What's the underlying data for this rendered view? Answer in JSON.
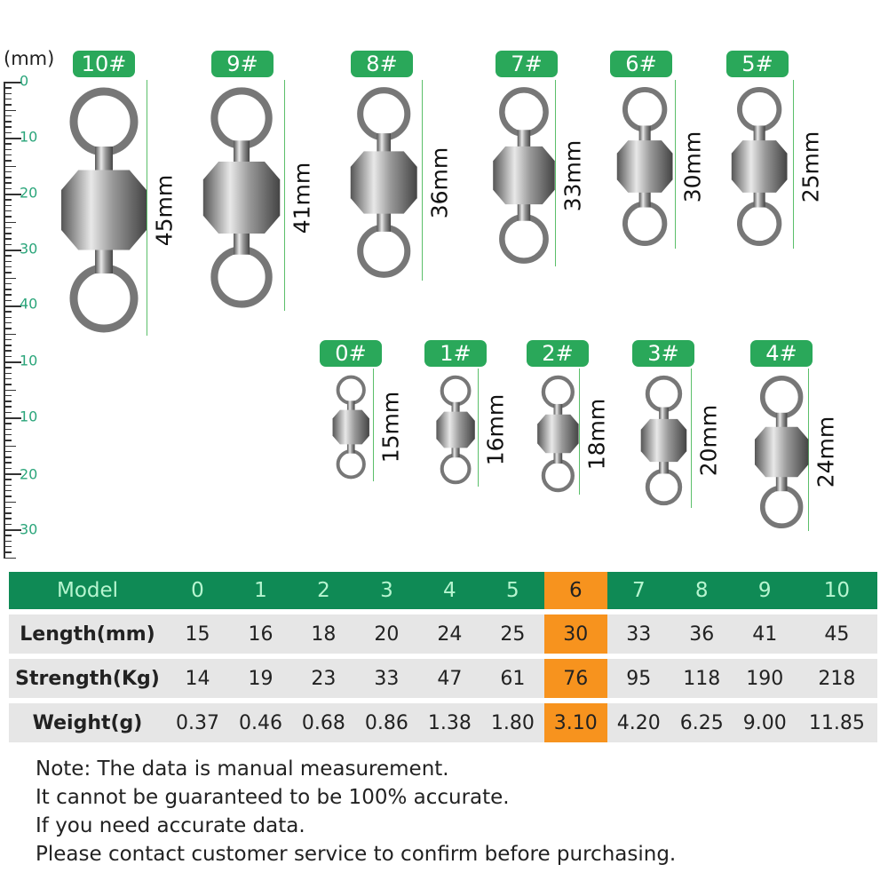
{
  "unit_label": "(mm)",
  "ruler_labels": [
    "0",
    "10",
    "20",
    "30",
    "40",
    "10",
    "10",
    "20",
    "30"
  ],
  "swivels": [
    {
      "badge": "10#",
      "length": "45mm"
    },
    {
      "badge": "9#",
      "length": "41mm"
    },
    {
      "badge": "8#",
      "length": "36mm"
    },
    {
      "badge": "7#",
      "length": "33mm"
    },
    {
      "badge": "6#",
      "length": "30mm"
    },
    {
      "badge": "5#",
      "length": "25mm"
    },
    {
      "badge": "0#",
      "length": "15mm"
    },
    {
      "badge": "1#",
      "length": "16mm"
    },
    {
      "badge": "2#",
      "length": "18mm"
    },
    {
      "badge": "3#",
      "length": "20mm"
    },
    {
      "badge": "4#",
      "length": "24mm"
    }
  ],
  "table": {
    "highlight_model": "6",
    "rows": [
      {
        "label": "Model",
        "values": [
          "0",
          "1",
          "2",
          "3",
          "4",
          "5",
          "6",
          "7",
          "8",
          "9",
          "10"
        ]
      },
      {
        "label": "Length(mm)",
        "values": [
          "15",
          "16",
          "18",
          "20",
          "24",
          "25",
          "30",
          "33",
          "36",
          "41",
          "45"
        ]
      },
      {
        "label": "Strength(Kg)",
        "values": [
          "14",
          "19",
          "23",
          "33",
          "47",
          "61",
          "76",
          "95",
          "118",
          "190",
          "218"
        ]
      },
      {
        "label": "Weight(g)",
        "values": [
          "0.37",
          "0.46",
          "0.68",
          "0.86",
          "1.38",
          "1.80",
          "3.10",
          "4.20",
          "6.25",
          "9.00",
          "11.85"
        ]
      }
    ]
  },
  "notes": [
    "Note: The data is manual measurement.",
    "It cannot be guaranteed to be 100% accurate.",
    "If you need accurate data.",
    "Please contact customer service to confirm before purchasing."
  ],
  "colors": {
    "header_green": "#0f8a55",
    "badge_green": "#2aa85a",
    "highlight_orange": "#f7931e",
    "row_gray": "#e6e6e6"
  }
}
